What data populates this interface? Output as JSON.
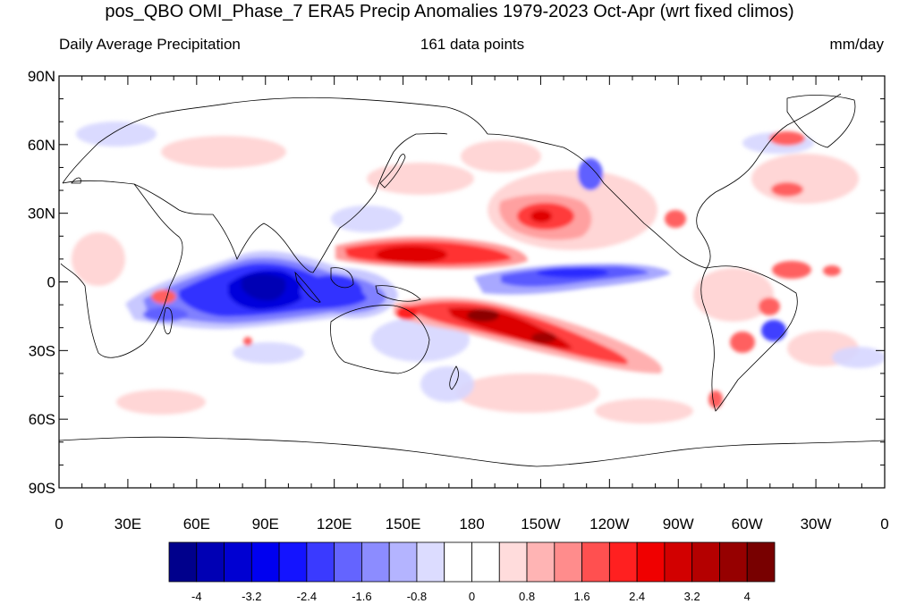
{
  "title": "pos_QBO OMI_Phase_7 ERA5 Precip Anomalies 1979-2023 Oct-Apr (wrt fixed climos)",
  "subtitle_left": "Daily Average Precipitation",
  "subtitle_center": "161 data points",
  "subtitle_right": "mm/day",
  "y_tick_labels": [
    "90N",
    "60N",
    "30N",
    "0",
    "30S",
    "60S",
    "90S"
  ],
  "x_tick_labels": [
    "0",
    "30E",
    "60E",
    "90E",
    "120E",
    "150E",
    "180",
    "150W",
    "120W",
    "90W",
    "60W",
    "30W",
    "0"
  ],
  "colorbar": {
    "labels": [
      "-4",
      "-3.2",
      "-2.4",
      "-1.6",
      "-0.8",
      "0",
      "0.8",
      "1.6",
      "2.4",
      "3.2",
      "4"
    ],
    "colors": [
      "#00008c",
      "#0000b4",
      "#0000d2",
      "#0000f0",
      "#1414ff",
      "#3a3aff",
      "#6464ff",
      "#8c8cff",
      "#b4b4ff",
      "#dcdcff",
      "#ffffff",
      "#ffffff",
      "#ffdcdc",
      "#ffb4b4",
      "#ff8c8c",
      "#ff5050",
      "#ff2020",
      "#f00000",
      "#d20000",
      "#b40000",
      "#960000",
      "#780000"
    ]
  },
  "colors": {
    "negative_strong": "#0000e6",
    "negative_mid": "#5a5aff",
    "negative_light": "#c8c8ff",
    "positive_strong": "#e60000",
    "positive_mid": "#ff6464",
    "positive_light": "#ffc8c8",
    "positive_darkest": "#8c0000"
  }
}
